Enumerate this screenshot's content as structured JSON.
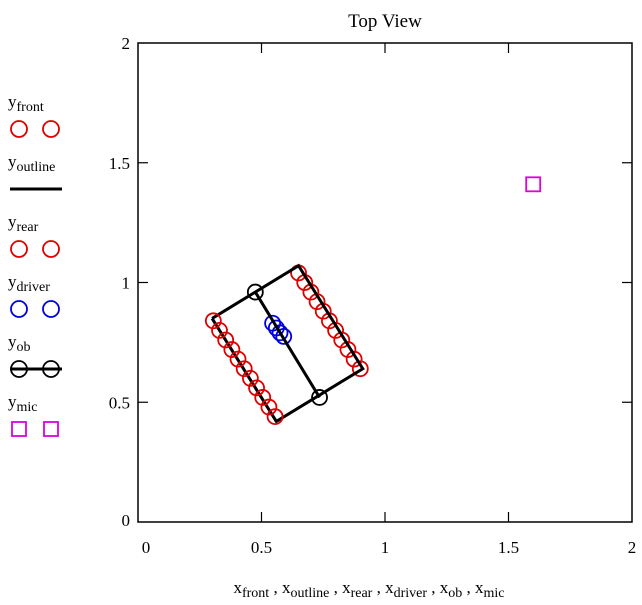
{
  "chart_data": {
    "type": "scatter",
    "title": "Top View",
    "xlim": [
      0,
      2
    ],
    "ylim": [
      0,
      2
    ],
    "x_ticks": [
      "0",
      "0.5",
      "1",
      "1.5",
      "2"
    ],
    "y_ticks": [
      "0",
      "0.5",
      "1",
      "1.5",
      "2"
    ],
    "xlabel_parts": [
      {
        "base": "x",
        "sub": "front"
      },
      {
        "base": "x",
        "sub": "outline"
      },
      {
        "base": "x",
        "sub": "rear"
      },
      {
        "base": "x",
        "sub": "driver"
      },
      {
        "base": "x",
        "sub": "ob"
      },
      {
        "base": "x",
        "sub": "mic"
      }
    ],
    "series": [
      {
        "name_base": "y",
        "name_sub": "front",
        "marker": "circle",
        "line": false,
        "color": "#dd0000",
        "points": [
          [
            0.65,
            1.04
          ],
          [
            0.675,
            1.0
          ],
          [
            0.7,
            0.96
          ],
          [
            0.725,
            0.92
          ],
          [
            0.75,
            0.88
          ],
          [
            0.775,
            0.84
          ],
          [
            0.8,
            0.8
          ],
          [
            0.825,
            0.76
          ],
          [
            0.85,
            0.72
          ],
          [
            0.875,
            0.68
          ],
          [
            0.9,
            0.64
          ]
        ]
      },
      {
        "name_base": "y",
        "name_sub": "outline",
        "marker": "none",
        "line": true,
        "color": "#000000",
        "points": [
          [
            0.3,
            0.85
          ],
          [
            0.65,
            1.07
          ],
          [
            0.91,
            0.64
          ],
          [
            0.56,
            0.42
          ],
          [
            0.3,
            0.85
          ]
        ]
      },
      {
        "name_base": "y",
        "name_sub": "rear",
        "marker": "circle",
        "line": false,
        "color": "#dd0000",
        "points": [
          [
            0.305,
            0.84
          ],
          [
            0.33,
            0.8
          ],
          [
            0.355,
            0.76
          ],
          [
            0.38,
            0.72
          ],
          [
            0.405,
            0.68
          ],
          [
            0.43,
            0.64
          ],
          [
            0.455,
            0.6
          ],
          [
            0.48,
            0.56
          ],
          [
            0.505,
            0.52
          ],
          [
            0.53,
            0.48
          ],
          [
            0.555,
            0.44
          ]
        ]
      },
      {
        "name_base": "y",
        "name_sub": "driver",
        "marker": "circle",
        "line": false,
        "color": "#0000dd",
        "points": [
          [
            0.545,
            0.83
          ],
          [
            0.56,
            0.81
          ],
          [
            0.575,
            0.79
          ],
          [
            0.59,
            0.775
          ]
        ]
      },
      {
        "name_base": "y",
        "name_sub": "ob",
        "marker": "circle",
        "line": true,
        "color": "#000000",
        "points": [
          [
            0.475,
            0.96
          ],
          [
            0.735,
            0.52
          ]
        ]
      },
      {
        "name_base": "y",
        "name_sub": "mic",
        "marker": "square",
        "line": false,
        "color": "#dd00dd",
        "points": [
          [
            1.6,
            1.41
          ]
        ]
      }
    ]
  }
}
